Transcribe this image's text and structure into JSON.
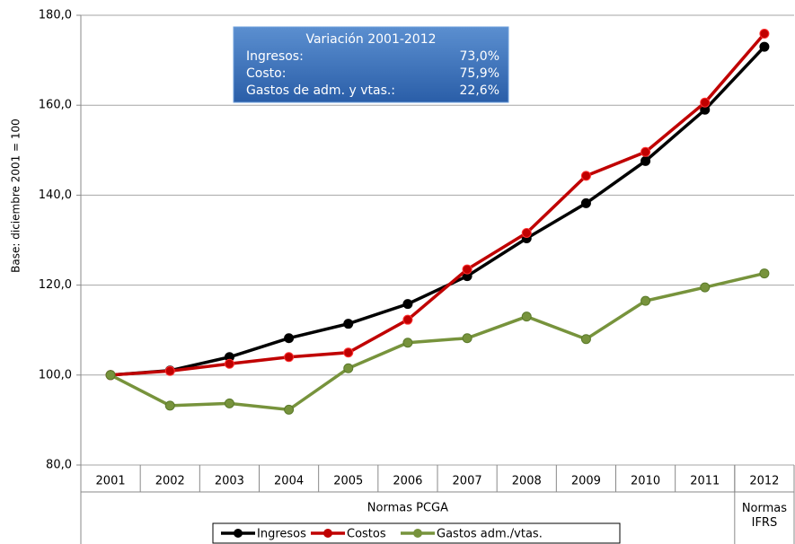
{
  "chart_data": {
    "type": "line",
    "y_label": "Base: diciembre 2001 = 100",
    "categories": [
      "2001",
      "2002",
      "2003",
      "2004",
      "2005",
      "2006",
      "2007",
      "2008",
      "2009",
      "2010",
      "2011",
      "2012"
    ],
    "category_groups": [
      {
        "label": "Normas PCGA",
        "from": 0,
        "to": 10
      },
      {
        "label": "Normas IFRS",
        "from": 11,
        "to": 11
      }
    ],
    "series": [
      {
        "name": "Ingresos",
        "color": "#000000",
        "values": [
          100,
          101,
          104,
          108.2,
          111.4,
          115.8,
          122,
          130.4,
          138.2,
          147.6,
          159,
          173
        ]
      },
      {
        "name": "Costos",
        "color": "#c00000",
        "values": [
          100,
          100.9,
          102.5,
          104,
          105,
          112.3,
          123.5,
          131.6,
          144.3,
          149.6,
          160.6,
          175.9
        ]
      },
      {
        "name": "Gastos adm./vtas.",
        "color": "#77933c",
        "values": [
          100,
          93.2,
          93.7,
          92.3,
          101.5,
          107.2,
          108.2,
          113,
          108,
          116.5,
          119.5,
          122.6
        ]
      }
    ],
    "ylim": [
      80,
      180
    ],
    "yticks": [
      {
        "value": 80,
        "label": "80,0"
      },
      {
        "value": 100,
        "label": "100,0"
      },
      {
        "value": 120,
        "label": "120,0"
      },
      {
        "value": 140,
        "label": "140,0"
      },
      {
        "value": 160,
        "label": "160,0"
      },
      {
        "value": 180,
        "label": "180,0"
      }
    ],
    "grid": true,
    "legend": "bottom",
    "annotation": {
      "title": "Variación 2001-2012",
      "rows": [
        [
          "Ingresos:",
          "73,0%"
        ],
        [
          "Costo:",
          "75,9%"
        ],
        [
          "Gastos de adm. y vtas.:",
          "22,6%"
        ]
      ]
    }
  }
}
